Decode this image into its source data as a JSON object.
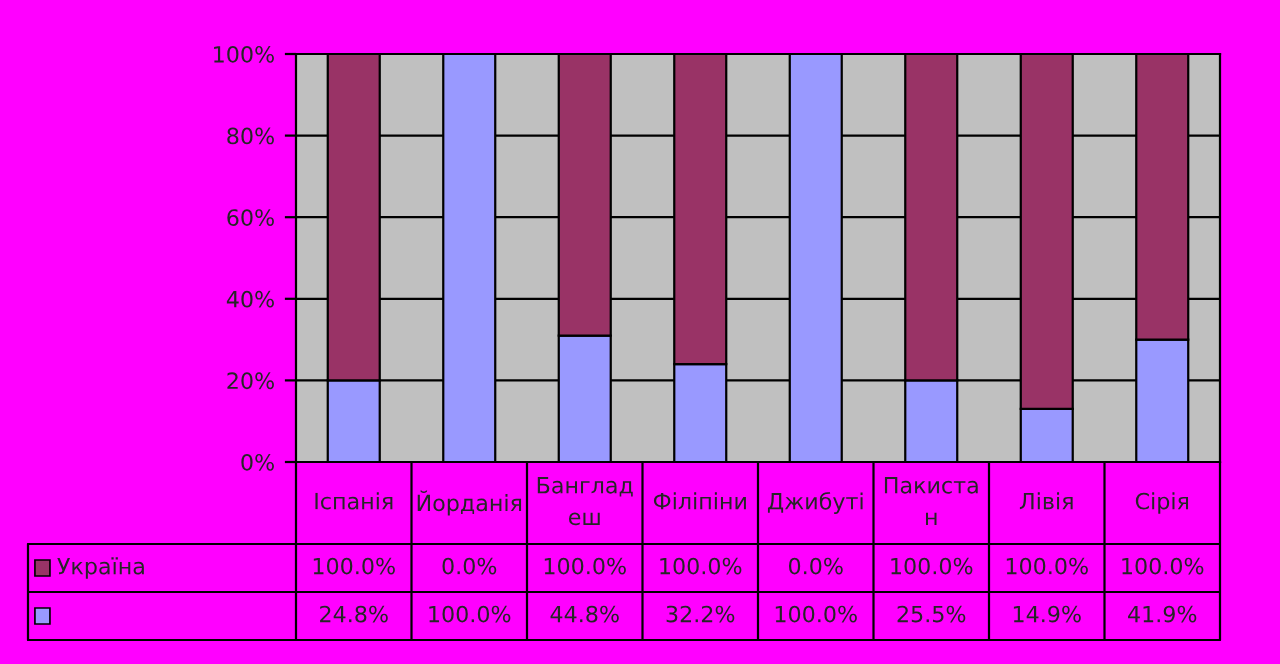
{
  "chart_data": {
    "type": "bar",
    "stacked": true,
    "categories": [
      "Іспанія",
      "Йорданія",
      "Банглад\nеш",
      "Філіпіни",
      "Джибуті",
      "Пакиста\nн",
      "Лівія",
      "Сірія"
    ],
    "series": [
      {
        "color": "#9999ff",
        "values": [
          20,
          100,
          31,
          24,
          100,
          20,
          13,
          30
        ]
      },
      {
        "name": "Україна",
        "color": "#993366",
        "values": [
          80,
          0,
          69,
          76,
          0,
          80,
          87,
          70
        ]
      }
    ],
    "annotations": [
      "100.0%",
      "0.0%",
      "100.0%",
      "100.0%",
      "0.0%",
      "100.0%",
      "100.0%",
      "100.0%",
      "24.8%",
      "100.0%",
      "44.8%",
      "32.2%",
      "100.0%",
      "25.5%",
      "14.9%",
      "41.9%"
    ],
    "ylim": [
      0,
      100
    ],
    "yticks": [
      {
        "value": 0,
        "label": "0%"
      },
      {
        "value": 20,
        "label": "20%"
      },
      {
        "value": 40,
        "label": "40%"
      },
      {
        "value": 60,
        "label": "60%"
      },
      {
        "value": 80,
        "label": "80%"
      },
      {
        "value": 100,
        "label": "100%"
      }
    ],
    "grid": "y",
    "legend": "bottom left"
  }
}
